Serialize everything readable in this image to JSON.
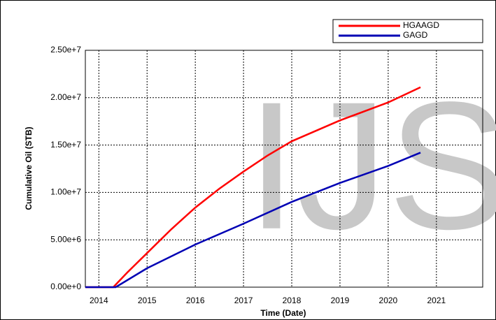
{
  "chart_data": {
    "type": "line",
    "watermark": "IJS",
    "xlabel": "Time (Date)",
    "ylabel": "Cumulative Oil (STB)",
    "xlim": [
      2013.72,
      2021.96
    ],
    "xticks": [
      2014,
      2015,
      2016,
      2017,
      2018,
      2019,
      2020,
      2021
    ],
    "ylim": [
      0,
      25000000
    ],
    "yticks": [
      {
        "value": 0,
        "label": "0.00e+0"
      },
      {
        "value": 5000000,
        "label": "5.00e+6"
      },
      {
        "value": 10000000,
        "label": "1.00e+7"
      },
      {
        "value": 15000000,
        "label": "1.50e+7"
      },
      {
        "value": 20000000,
        "label": "2.00e+7"
      },
      {
        "value": 25000000,
        "label": "2.50e+7"
      }
    ],
    "grid": true,
    "legend": "top-right",
    "series": [
      {
        "name": "HGAAGD",
        "color": "#ff0000",
        "x": [
          2013.72,
          2014.3,
          2014.6,
          2015,
          2015.5,
          2016,
          2016.5,
          2017,
          2017.5,
          2018,
          2019,
          2020,
          2020.67
        ],
        "values": [
          0,
          0,
          1600000,
          3600000,
          6100000,
          8400000,
          10400000,
          12200000,
          13900000,
          15400000,
          17600000,
          19500000,
          21100000
        ]
      },
      {
        "name": "GAGD",
        "color": "#0000b4",
        "x": [
          2013.72,
          2014.35,
          2015,
          2016,
          2017,
          2018,
          2019,
          2020,
          2020.67
        ],
        "values": [
          0,
          0,
          2000000,
          4500000,
          6700000,
          9000000,
          11000000,
          12800000,
          14200000
        ]
      }
    ]
  }
}
